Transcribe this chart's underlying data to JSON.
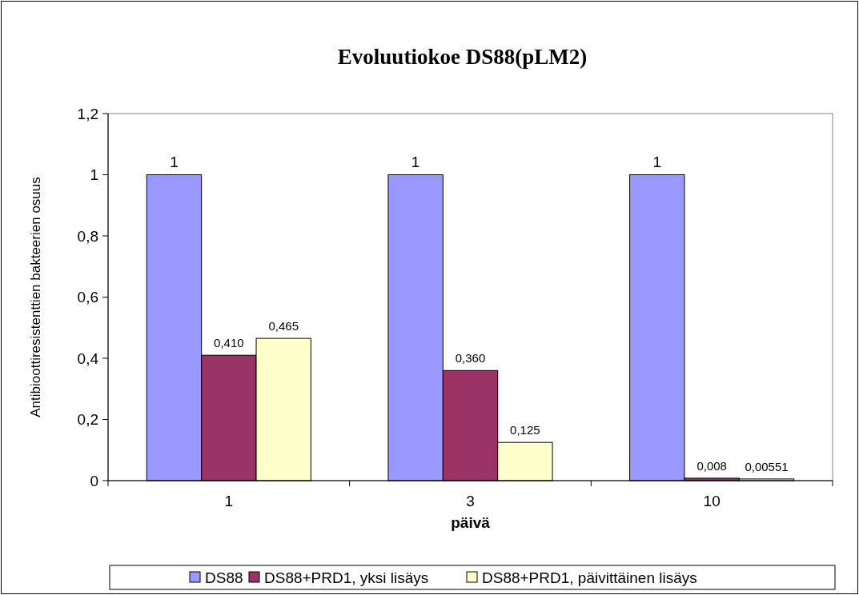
{
  "chart_data": {
    "type": "bar",
    "title": "Evoluutiokoe DS88(pLM2)",
    "xlabel": "päivä",
    "ylabel": "Antibioottiresistenttien bakteerien osuus",
    "categories": [
      "1",
      "3",
      "10"
    ],
    "series": [
      {
        "name": "DS88",
        "color": "#9999ff",
        "values": [
          1,
          1,
          1
        ],
        "value_labels": [
          "1",
          "1",
          "1"
        ]
      },
      {
        "name": "DS88+PRD1, yksi lisäys",
        "color": "#993366",
        "values": [
          0.41,
          0.36,
          0.008
        ],
        "value_labels": [
          "0,410",
          "0,360",
          "0,008"
        ]
      },
      {
        "name": "DS88+PRD1, päivittäinen lisäys",
        "color": "#ffffcc",
        "values": [
          0.465,
          0.125,
          0.00551
        ],
        "value_labels": [
          "0,465",
          "0,125",
          "0,00551"
        ]
      }
    ],
    "ylim": [
      0,
      1.2
    ],
    "yticks": [
      0,
      {
        "value": 0.2,
        "label": "0,2"
      },
      {
        "value": 0.4,
        "label": "0,4"
      },
      {
        "value": 0.6,
        "label": "0,6"
      },
      {
        "value": 0.8,
        "label": "0,8"
      },
      1,
      {
        "value": 1.2,
        "label": "1,2"
      }
    ],
    "grid": false,
    "legend": "bottom"
  }
}
